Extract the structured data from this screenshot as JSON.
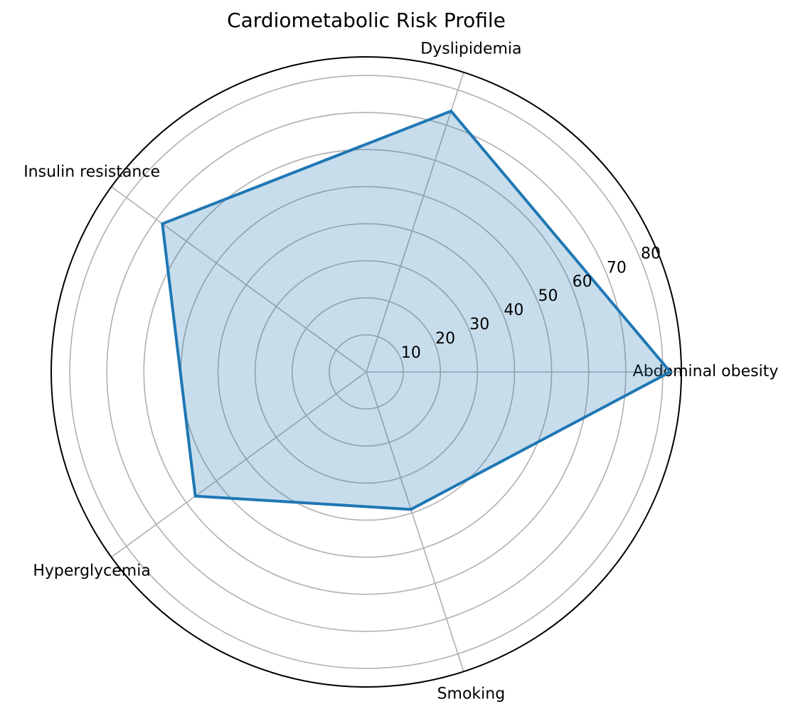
{
  "chart_data": {
    "type": "radar",
    "title": "Cardiometabolic Risk Profile",
    "categories": [
      "Abdominal obesity",
      "Dyslipidemia",
      "Insulin resistance",
      "Hyperglycemia",
      "Smoking"
    ],
    "values": [
      82,
      74,
      68,
      57,
      39
    ],
    "color": "#1f77b4",
    "ylim": [
      0,
      85
    ],
    "yticks": [
      10,
      20,
      30,
      40,
      50,
      60,
      70,
      80
    ],
    "grid": true
  }
}
